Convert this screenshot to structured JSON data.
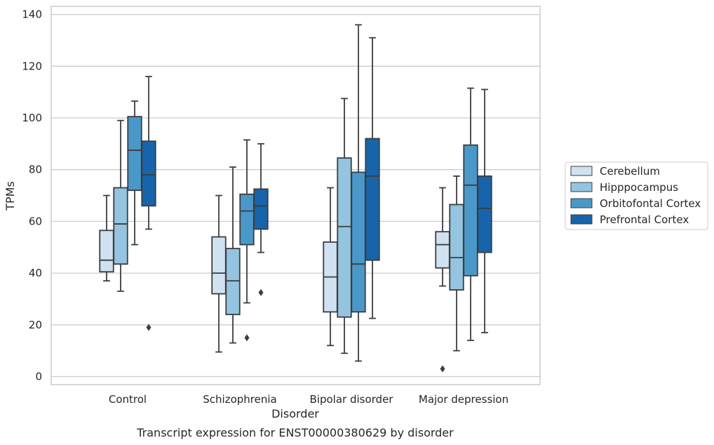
{
  "caption": "Transcript expression for ENST00000380629 by disorder",
  "chart_data": {
    "type": "boxplot",
    "xlabel": "Disorder",
    "ylabel": "TPMs",
    "ylim": [
      -3,
      143
    ],
    "yticks": [
      0,
      20,
      40,
      60,
      80,
      100,
      120,
      140
    ],
    "grid": "horizontal",
    "legend_position": "right",
    "categories": [
      "Control",
      "Schizophrenia",
      "Bipolar disorder",
      "Major depression"
    ],
    "series": [
      {
        "name": "Cerebellum",
        "color": "#d0e1f2",
        "boxes": [
          {
            "whisker_low": 37,
            "q1": 40.5,
            "median": 45,
            "q3": 56.5,
            "whisker_high": 70,
            "outliers": []
          },
          {
            "whisker_low": 9.5,
            "q1": 32,
            "median": 40,
            "q3": 54,
            "whisker_high": 70,
            "outliers": []
          },
          {
            "whisker_low": 12,
            "q1": 25,
            "median": 38.5,
            "q3": 52,
            "whisker_high": 73,
            "outliers": []
          },
          {
            "whisker_low": 35,
            "q1": 42,
            "median": 51,
            "q3": 56,
            "whisker_high": 73,
            "outliers": [
              3
            ]
          }
        ]
      },
      {
        "name": "Hipppocampus",
        "color": "#94c4df",
        "boxes": [
          {
            "whisker_low": 33,
            "q1": 43.5,
            "median": 59,
            "q3": 73,
            "whisker_high": 99,
            "outliers": []
          },
          {
            "whisker_low": 13,
            "q1": 24,
            "median": 37,
            "q3": 49.5,
            "whisker_high": 81,
            "outliers": []
          },
          {
            "whisker_low": 9,
            "q1": 23,
            "median": 58,
            "q3": 84.5,
            "whisker_high": 107.5,
            "outliers": []
          },
          {
            "whisker_low": 10,
            "q1": 33.5,
            "median": 46,
            "q3": 66.5,
            "whisker_high": 77.5,
            "outliers": []
          }
        ]
      },
      {
        "name": "Orbitofontal Cortex",
        "color": "#4a98c9",
        "boxes": [
          {
            "whisker_low": 51,
            "q1": 72,
            "median": 87.5,
            "q3": 100.5,
            "whisker_high": 106.5,
            "outliers": []
          },
          {
            "whisker_low": 28.5,
            "q1": 51,
            "median": 64,
            "q3": 70.5,
            "whisker_high": 91.5,
            "outliers": [
              15
            ]
          },
          {
            "whisker_low": 6,
            "q1": 25,
            "median": 43.5,
            "q3": 79,
            "whisker_high": 136,
            "outliers": []
          },
          {
            "whisker_low": 14,
            "q1": 39,
            "median": 74,
            "q3": 89.5,
            "whisker_high": 111.5,
            "outliers": []
          }
        ]
      },
      {
        "name": "Prefrontal Cortex",
        "color": "#1764ab",
        "boxes": [
          {
            "whisker_low": 57,
            "q1": 66,
            "median": 78,
            "q3": 91,
            "whisker_high": 116,
            "outliers": [
              19
            ]
          },
          {
            "whisker_low": 48,
            "q1": 57,
            "median": 66,
            "q3": 72.5,
            "whisker_high": 90,
            "outliers": [
              32.5
            ]
          },
          {
            "whisker_low": 22.5,
            "q1": 45,
            "median": 77.5,
            "q3": 92,
            "whisker_high": 131,
            "outliers": []
          },
          {
            "whisker_low": 17,
            "q1": 48,
            "median": 65,
            "q3": 77.5,
            "whisker_high": 111,
            "outliers": []
          }
        ]
      }
    ]
  }
}
